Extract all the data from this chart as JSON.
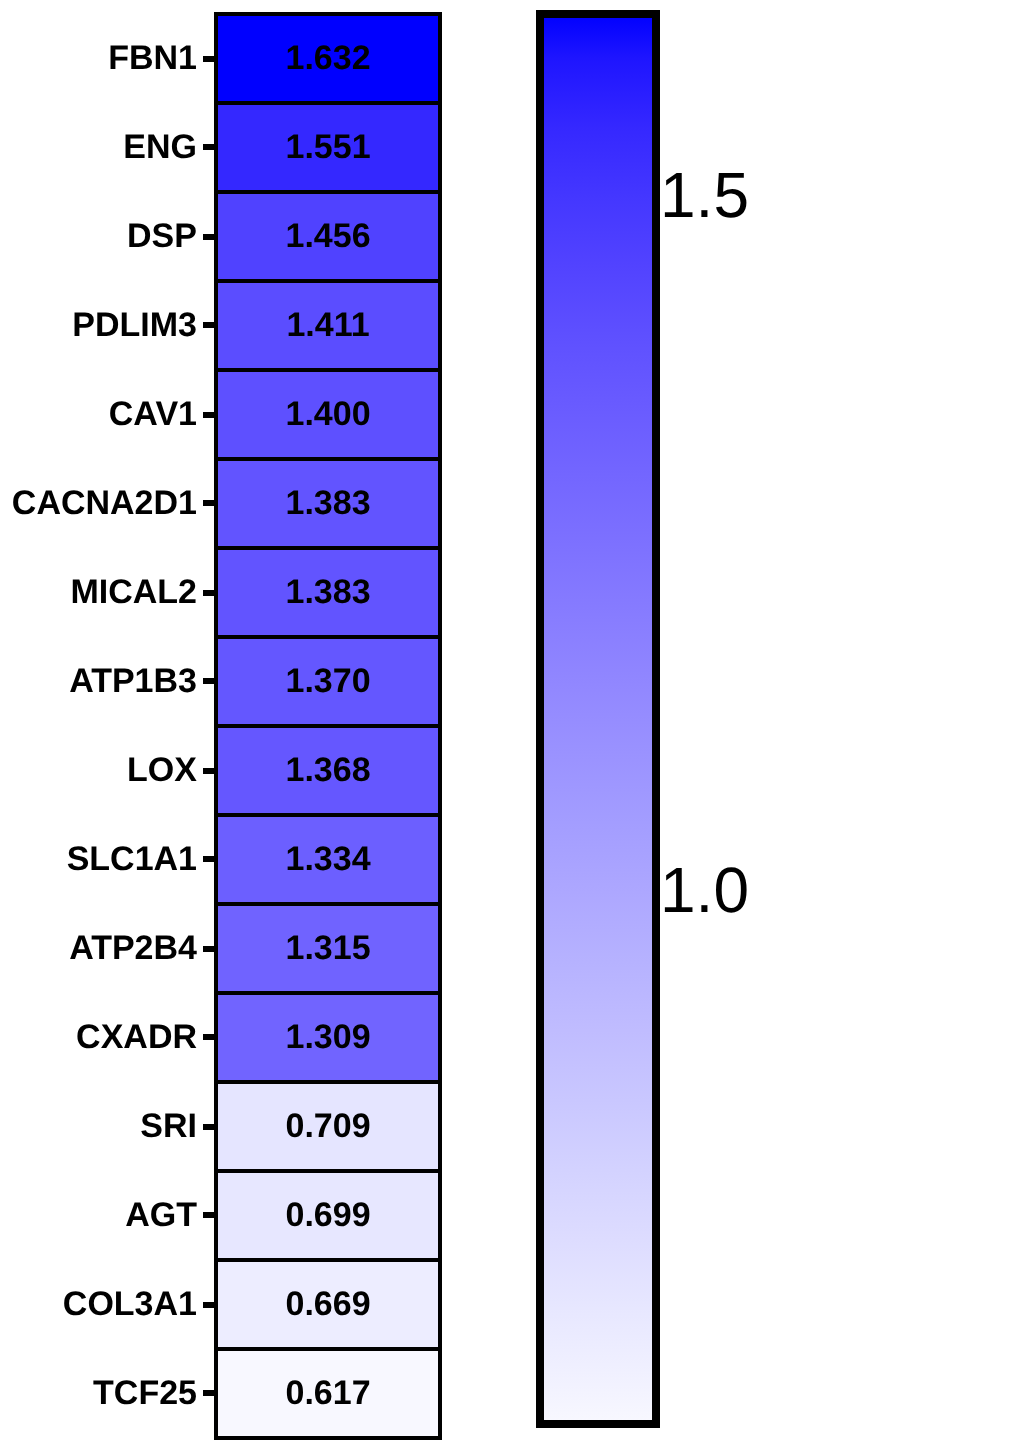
{
  "chart_data": {
    "type": "heatmap",
    "categories": [
      null
    ],
    "y_categories": [
      "FBN1",
      "ENG",
      "DSP",
      "PDLIM3",
      "CAV1",
      "CACNA2D1",
      "MICAL2",
      "ATP1B3",
      "LOX",
      "SLC1A1",
      "ATP2B4",
      "CXADR",
      "SRI",
      "AGT",
      "COL3A1",
      "TCF25"
    ],
    "cells": [
      [
        1.632
      ],
      [
        1.551
      ],
      [
        1.456
      ],
      [
        1.411
      ],
      [
        1.4
      ],
      [
        1.383
      ],
      [
        1.383
      ],
      [
        1.37
      ],
      [
        1.368
      ],
      [
        1.334
      ],
      [
        1.315
      ],
      [
        1.309
      ],
      [
        0.709
      ],
      [
        0.699
      ],
      [
        0.669
      ],
      [
        0.617
      ]
    ],
    "clim": [
      0.617,
      1.632
    ],
    "cticks": [
      {
        "value": 1.0,
        "label": "1.0"
      },
      {
        "value": 1.5,
        "label": "1.5"
      }
    ],
    "cell_labels": [
      [
        "1.632"
      ],
      [
        "1.551"
      ],
      [
        "1.456"
      ],
      [
        "1.411"
      ],
      [
        "1.400"
      ],
      [
        "1.383"
      ],
      [
        "1.383"
      ],
      [
        "1.370"
      ],
      [
        "1.368"
      ],
      [
        "1.334"
      ],
      [
        "1.315"
      ],
      [
        "1.309"
      ],
      [
        "0.709"
      ],
      [
        "0.699"
      ],
      [
        "0.669"
      ],
      [
        "0.617"
      ]
    ],
    "colors": [
      "#f8f8ff",
      "#0000ff"
    ]
  }
}
